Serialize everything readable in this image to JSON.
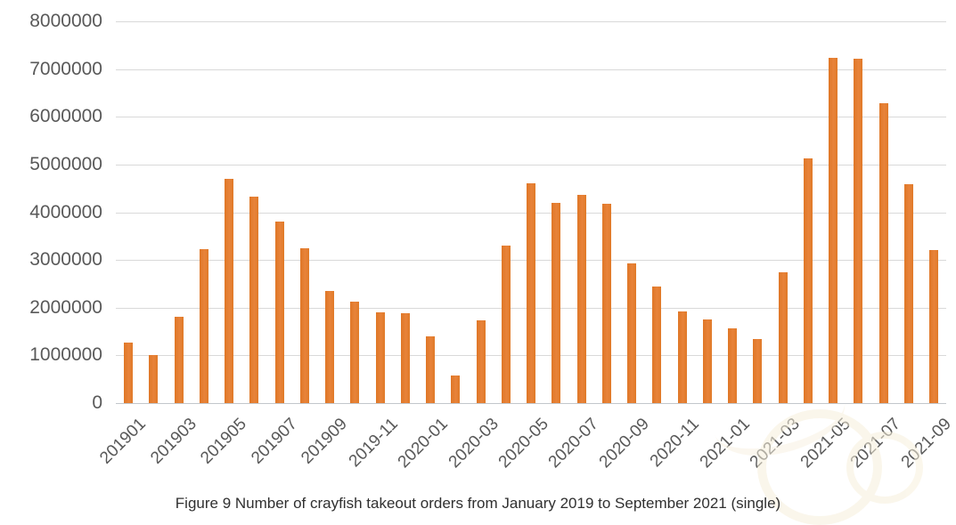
{
  "figure": {
    "caption": "Figure 9 Number of crayfish takeout orders from January 2019 to September 2021 (single)"
  },
  "chart_data": {
    "type": "bar",
    "title": "",
    "xlabel": "",
    "ylabel": "",
    "categories": [
      "2019-01",
      "2019-02",
      "2019-03",
      "2019-04",
      "2019-05",
      "2019-06",
      "2019-07",
      "2019-08",
      "2019-09",
      "2019-10",
      "2019-11",
      "2019-12",
      "2020-01",
      "2020-02",
      "2020-03",
      "2020-04",
      "2020-05",
      "2020-06",
      "2020-07",
      "2020-08",
      "2020-09",
      "2020-10",
      "2020-11",
      "2020-12",
      "2021-01",
      "2021-02",
      "2021-03",
      "2021-04",
      "2021-05",
      "2021-06",
      "2021-07",
      "2021-08",
      "2021-09"
    ],
    "values": [
      1270000,
      1000000,
      1800000,
      3230000,
      4700000,
      4330000,
      3810000,
      3250000,
      2350000,
      2130000,
      1900000,
      1880000,
      1390000,
      580000,
      1730000,
      3300000,
      4600000,
      4200000,
      4360000,
      4170000,
      2920000,
      2440000,
      1930000,
      1750000,
      1570000,
      1340000,
      2740000,
      5120000,
      7240000,
      7210000,
      6290000,
      4580000,
      3210000
    ],
    "x_tick_labels": [
      "201901",
      "201903",
      "201905",
      "201907",
      "201909",
      "2019-11",
      "2020-01",
      "2020-03",
      "2020-05",
      "2020-07",
      "2020-09",
      "2020-11",
      "2021-01",
      "2021-03",
      "2021-05",
      "2021-07",
      "2021-09"
    ],
    "x_tick_every": 2,
    "y_ticks": [
      0,
      1000000,
      2000000,
      3000000,
      4000000,
      5000000,
      6000000,
      7000000,
      8000000
    ],
    "ylim": [
      0,
      8000000
    ],
    "grid": "horizontal",
    "legend": "none",
    "bar_color": "#e57e2d",
    "gridline_color": "#d9d9d9",
    "axis_text_color": "#595959"
  }
}
